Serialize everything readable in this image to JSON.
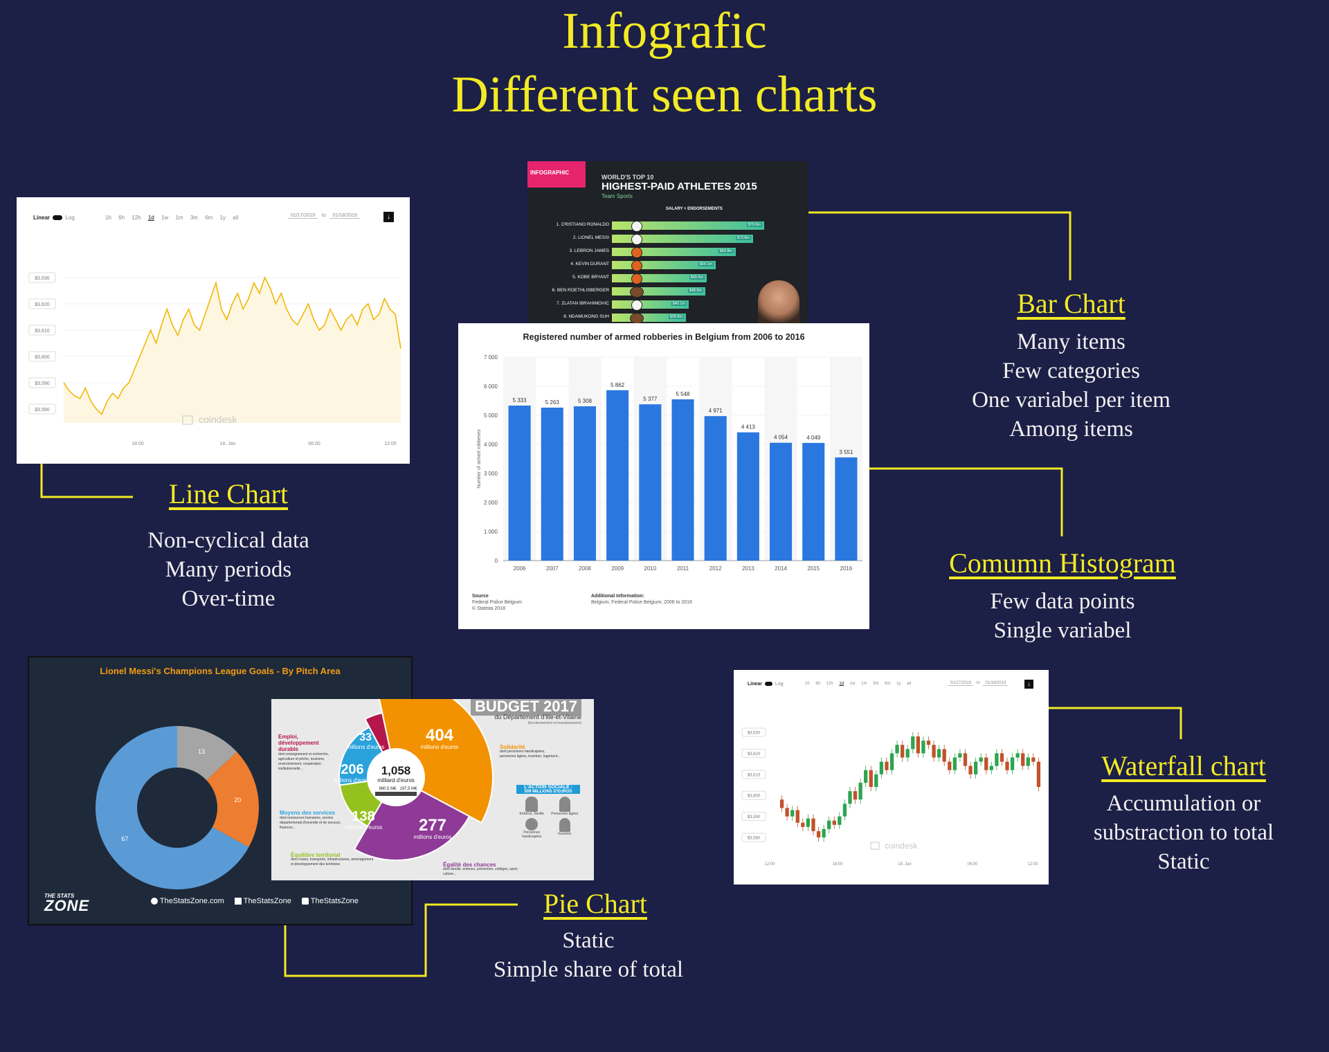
{
  "title": {
    "line1": "Infografic",
    "line2": "Different seen charts"
  },
  "sections": {
    "line": {
      "heading": "Line Chart",
      "lines": [
        "Non-cyclical data",
        "Many periods",
        "Over-time"
      ]
    },
    "bar": {
      "heading": "Bar Chart",
      "lines": [
        "Many items",
        "Few categories",
        "One variabel per item",
        "Among items"
      ]
    },
    "histogram": {
      "heading": "Comumn Histogram",
      "lines": [
        "Few data points",
        "Single variabel"
      ]
    },
    "waterfall": {
      "heading": "Waterfall chart",
      "lines": [
        "Accumulation or",
        "substraction to total",
        "Static"
      ]
    },
    "pie": {
      "heading": "Pie Chart",
      "lines": [
        "Static",
        "Simple share of total"
      ]
    }
  },
  "colors": {
    "background": "#1c1f46",
    "accent": "#f2ea24",
    "text": "#f1f1f1",
    "bar_blue": "#2a77e0"
  },
  "coindesk_toolbar": {
    "linear": "Linear",
    "log": "Log",
    "ranges": [
      "1h",
      "6h",
      "12h",
      "1d",
      "1w",
      "1m",
      "3m",
      "6m",
      "1y",
      "all"
    ],
    "date_from": "01/17/2019",
    "to": "to",
    "date_to": "01/18/2019",
    "watermark": "coindesk"
  },
  "line_thumb": {
    "y_ticks": [
      "$3,630",
      "$3,620",
      "$3,610",
      "$3,600",
      "$3,590",
      "$3,580"
    ],
    "x_ticks": [
      "18:00",
      "18. Jan",
      "06:00",
      "12:00"
    ],
    "series": [
      3590,
      3587,
      3585,
      3584,
      3588,
      3583,
      3580,
      3578,
      3583,
      3586,
      3584,
      3588,
      3590,
      3595,
      3600,
      3605,
      3610,
      3605,
      3612,
      3618,
      3612,
      3608,
      3614,
      3618,
      3612,
      3610,
      3616,
      3622,
      3628,
      3618,
      3614,
      3620,
      3624,
      3618,
      3622,
      3628,
      3624,
      3630,
      3626,
      3620,
      3624,
      3618,
      3614,
      3612,
      3616,
      3620,
      3614,
      3610,
      3612,
      3618,
      3614,
      3610,
      3614,
      3616,
      3612,
      3618,
      3620,
      3614,
      3616,
      3622,
      3618,
      3616,
      3603
    ]
  },
  "athletes_thumb": {
    "badge": "INFOGRAPHIC",
    "kicker": "WORLD'S TOP 10",
    "headline": "HIGHEST-PAID ATHLETES 2015",
    "subhead": "Team Sports",
    "col_header": "SALARY + ENDORSEMENTS",
    "rows": [
      {
        "name": "1. CRISTIANO RONALDO",
        "label": "$79.6m",
        "value": 79.6
      },
      {
        "name": "2. LIONEL MESSI",
        "label": "$73.8m",
        "value": 73.8
      },
      {
        "name": "3. LEBRON JAMES",
        "label": "$64.8m",
        "value": 64.8
      },
      {
        "name": "4. KEVIN DURANT",
        "label": "$54.1m",
        "value": 54.1
      },
      {
        "name": "5. KOBE BRYANT",
        "label": "$49.5m",
        "value": 49.5
      },
      {
        "name": "6. BEN ROETHLISBERGER",
        "label": "$48.9m",
        "value": 48.9
      },
      {
        "name": "7. ZLATAN IBRAHIMOVIC",
        "label": "$40.1m",
        "value": 40.1
      },
      {
        "name": "8. NDAMUKONG SUH",
        "label": "$38.8m",
        "value": 38.8
      }
    ]
  },
  "robberies_thumb": {
    "title": "Registered number of armed robberies in Belgium from 2006 to 2016",
    "ylabel": "Number of armed robberies",
    "y_ticks": [
      "7 000",
      "6 000",
      "5 000",
      "4 000",
      "3 000",
      "2 000",
      "1 000",
      "0"
    ],
    "categories": [
      "2006",
      "2007",
      "2008",
      "2009",
      "2010",
      "2011",
      "2012",
      "2013",
      "2014",
      "2015",
      "2016"
    ],
    "values": [
      5333,
      5263,
      5308,
      5862,
      5377,
      5548,
      4971,
      4413,
      4054,
      4049,
      3551
    ],
    "labels": [
      "5 333",
      "5 263",
      "5 308",
      "5 862",
      "5 377",
      "5 548",
      "4 971",
      "4 413",
      "4 054",
      "4 049",
      "3 551"
    ],
    "ymax": 7000,
    "source_head": "Source",
    "source_lines": [
      "Federal Police Belgium",
      "© Statista 2018"
    ],
    "info_head": "Additional Information:",
    "info_line": "Belgium; Federal Police Belgium; 2006 to 2016"
  },
  "waterfall_thumb": {
    "y_ticks": [
      "$3,630",
      "$3,620",
      "$3,610",
      "$3,600",
      "$3,590",
      "$3,580"
    ],
    "x_ticks": [
      "12:00",
      "18:00",
      "18. Jan",
      "06:00",
      "12:00"
    ],
    "candles": [
      3598,
      3594,
      3590,
      3593,
      3587,
      3585,
      3589,
      3583,
      3580,
      3584,
      3588,
      3586,
      3590,
      3596,
      3602,
      3598,
      3606,
      3612,
      3604,
      3610,
      3616,
      3612,
      3620,
      3624,
      3618,
      3622,
      3628,
      3620,
      3626,
      3624,
      3618,
      3622,
      3616,
      3612,
      3618,
      3620,
      3614,
      3610,
      3616,
      3618,
      3612,
      3614,
      3620,
      3616,
      3612,
      3618,
      3620,
      3614,
      3618,
      3616,
      3604
    ],
    "watermark": "coindesk"
  },
  "messi_thumb": {
    "title": "Lionel Messi's Champions League Goals - By Pitch Area",
    "values": [
      67,
      20,
      13
    ],
    "labels": [
      "67",
      "20",
      "13"
    ],
    "slice_colors": [
      "#5b9bd5",
      "#ed7d31",
      "#a5a5a5"
    ],
    "brand_top": "THE STATS",
    "brand_bottom": "ZONE",
    "socials": [
      "TheStatsZone.com",
      "TheStatsZone",
      "TheStatsZone"
    ]
  },
  "budget_thumb": {
    "title": "BUDGET 2017",
    "subtitle": "du Département d'Ille-et-Vilaine",
    "subnote": "(fonctionnement et investissement)",
    "center_value": "1,058",
    "center_unit": "milliard d'euros",
    "center_split": [
      "860,5 M€",
      "197,5 M€"
    ],
    "slices": [
      {
        "value": "404",
        "unit": "millions d'euros",
        "color": "#f39200"
      },
      {
        "value": "277",
        "unit": "millions d'euros",
        "color": "#8e3a96"
      },
      {
        "value": "138",
        "unit": "millions d'euros",
        "color": "#95c11f"
      },
      {
        "value": "206",
        "unit": "millions d'euros",
        "color": "#2aa3dc"
      },
      {
        "value": "33",
        "unit": "millions d'euros",
        "color": "#b5174b"
      }
    ],
    "categories": [
      {
        "title": "Emploi, développement durable",
        "text": "dont enseignement et recherche, agriculture et pêche, tourisme, environnement, coopération institutionnelle...",
        "color": "#b5174b"
      },
      {
        "title": "Solidarité",
        "text": "dont personnes handicapées, personnes âgées, insertion, logement...",
        "color": "#f39200"
      },
      {
        "title": "Moyens des services",
        "text": "dont ressources humaines, service départemental d'incendie et de secours, finances...",
        "color": "#2aa3dc"
      },
      {
        "title": "Équilibre territorial",
        "text": "dont routes, transports, infrastructures, aménagement et développement des territoires",
        "color": "#95c11f"
      },
      {
        "title": "Égalité des chances",
        "text": "dont famille, enfance, prévention, collèges, sport, culture...",
        "color": "#8e3a96"
      }
    ],
    "action_title": "L'ACTION SOCIALE :",
    "action_sub": "509 MILLIONS D'EUROS",
    "action_items": [
      "Enfance, famille",
      "Personnes âgées",
      "Personnes handicapées",
      "Insertion"
    ]
  }
}
